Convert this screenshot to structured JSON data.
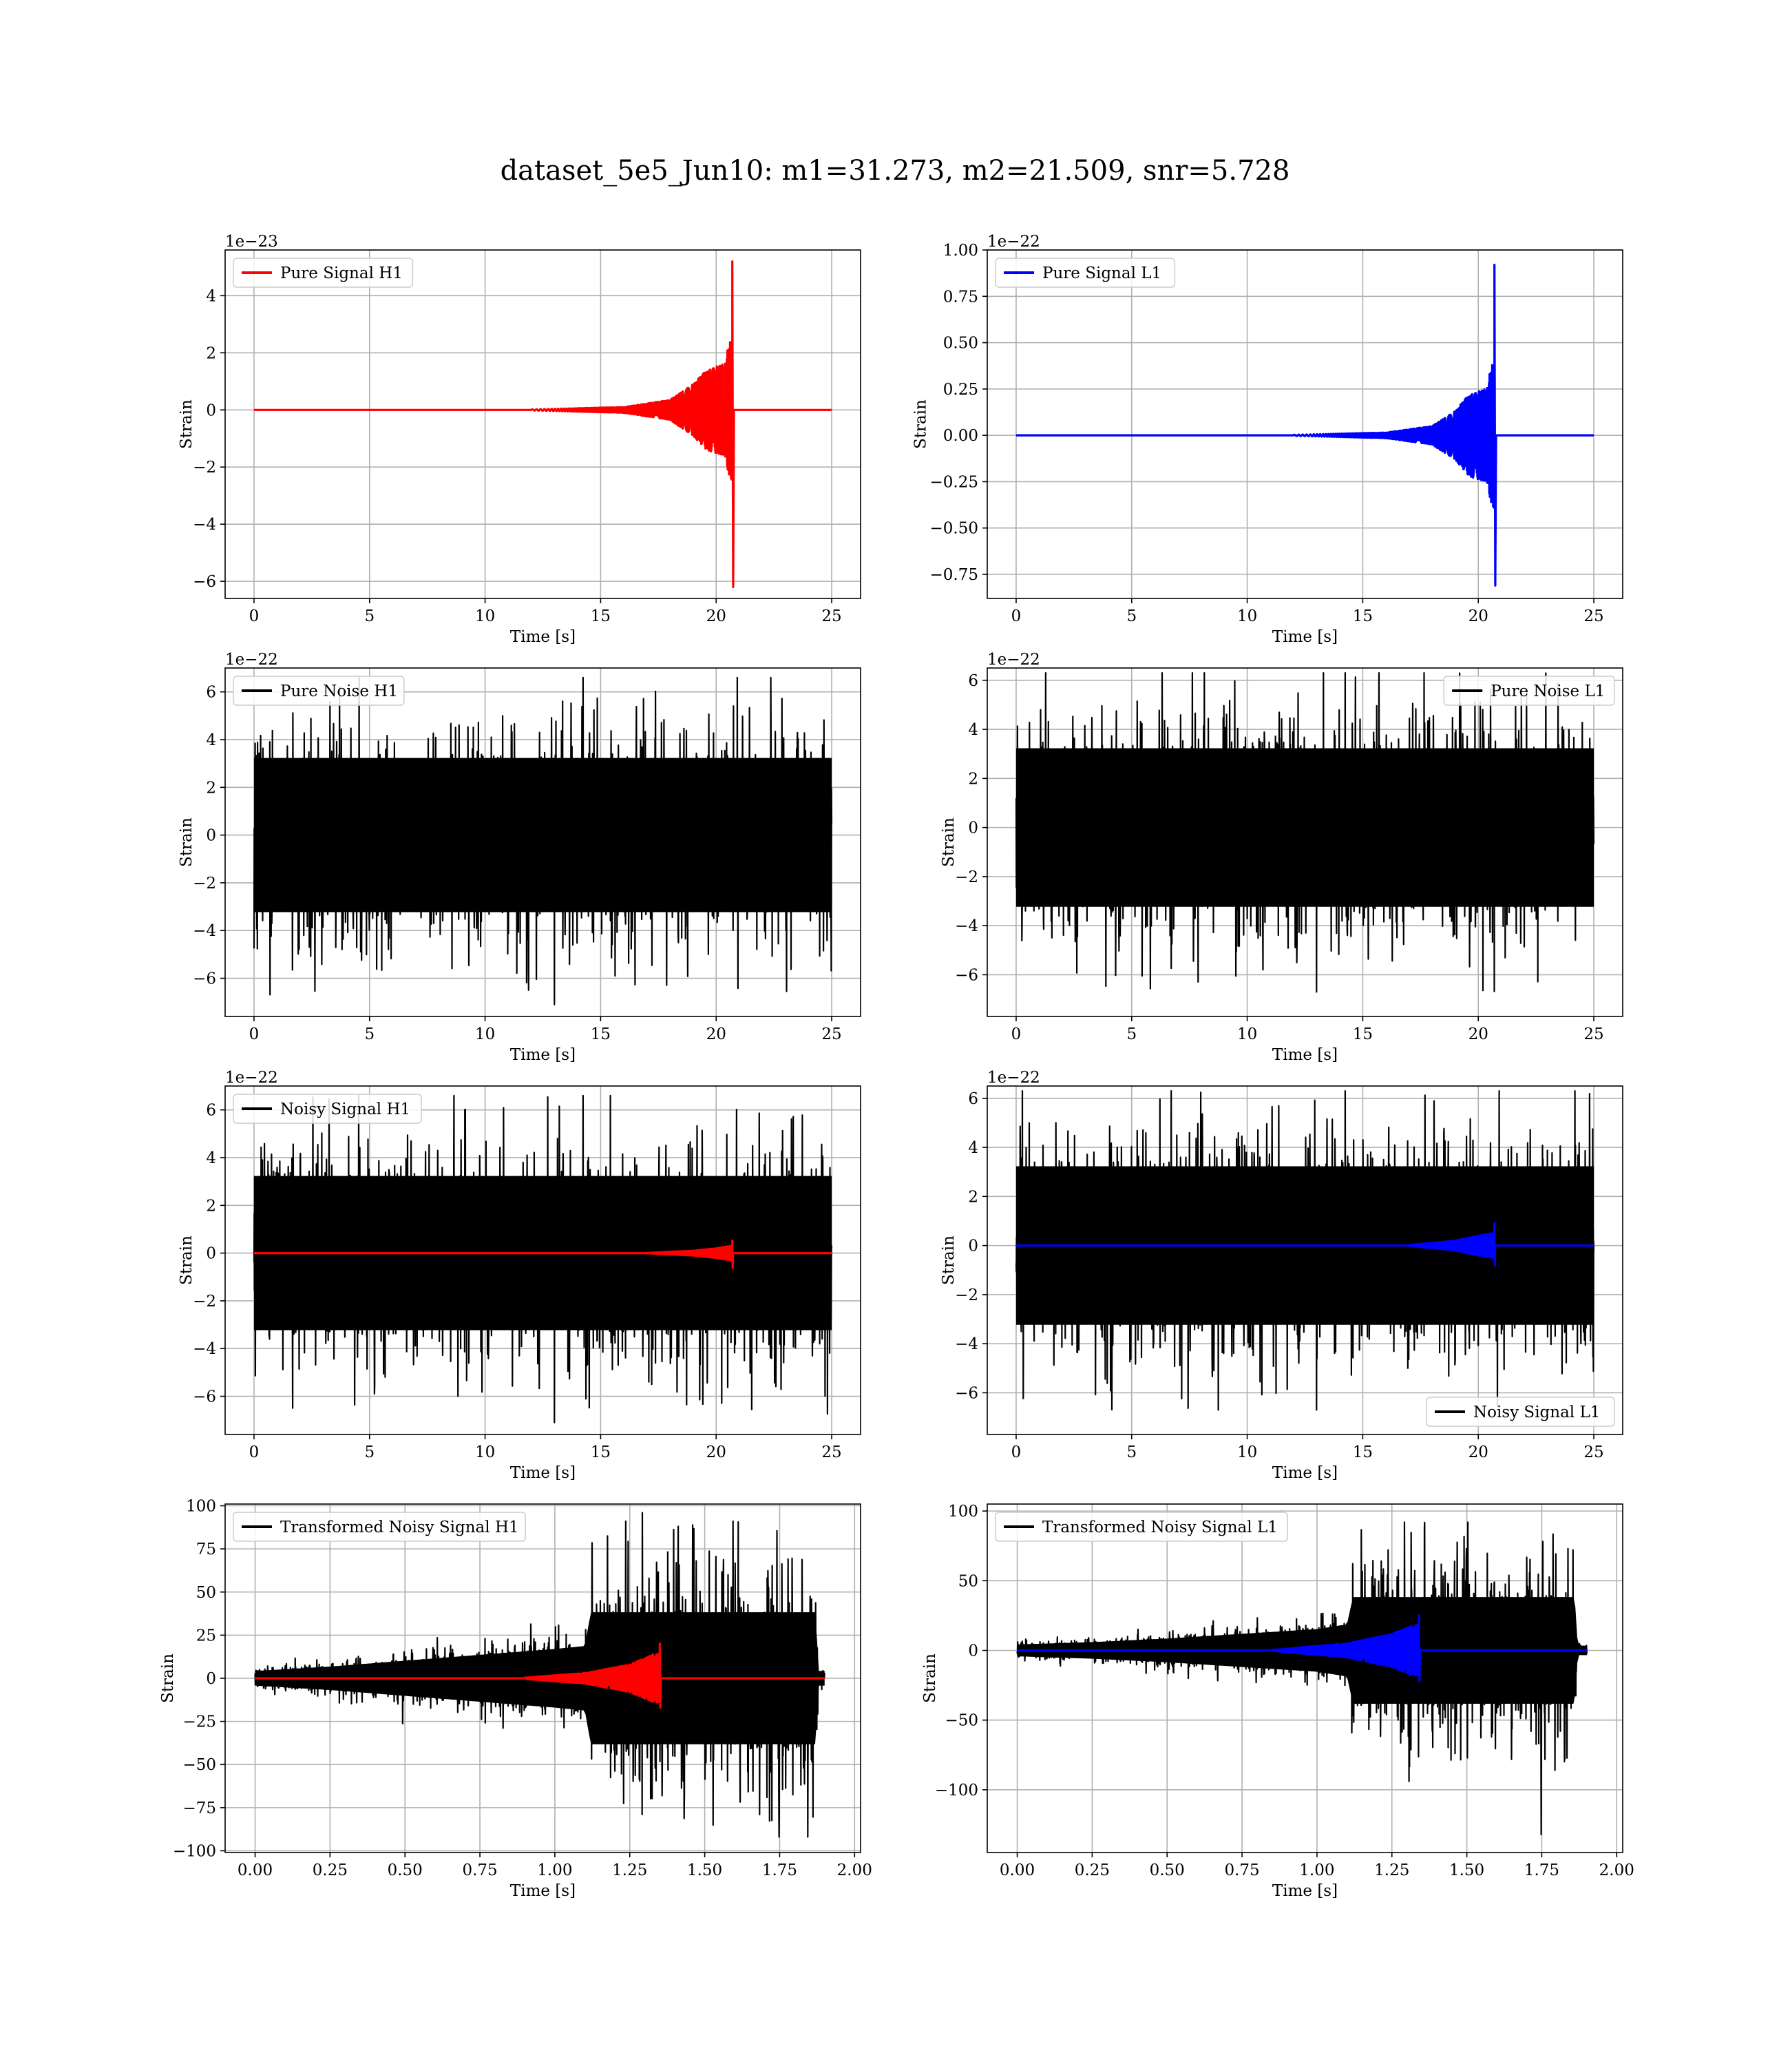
{
  "title": "dataset_5e5_Jun10: m1=31.273, m2=21.509, snr=5.728",
  "colors": {
    "signal_h1": "#ff0000",
    "signal_l1": "#0000ff",
    "noise": "#000000",
    "grid": "#b0b0b0"
  },
  "chart_data": [
    {
      "id": "pure-signal-h1",
      "type": "line",
      "xlabel": "Time [s]",
      "ylabel": "Strain",
      "offset_label": "1e−23",
      "xlim": [
        -1.25,
        26.25
      ],
      "ylim": [
        -6.6,
        5.6
      ],
      "xticks": [
        0,
        5,
        10,
        15,
        20,
        25
      ],
      "xtick_labels": [
        "0",
        "5",
        "10",
        "15",
        "20",
        "25"
      ],
      "yticks": [
        -6,
        -4,
        -2,
        0,
        2,
        4
      ],
      "ytick_labels": [
        "−6",
        "−4",
        "−2",
        "0",
        "2",
        "4"
      ],
      "legend_position": "upper left",
      "series": [
        {
          "name": "Pure Signal H1",
          "color": "#ff0000",
          "kind": "chirp",
          "x_range": [
            0,
            25
          ],
          "chirp_start": 12,
          "chirp_end": 20.7,
          "envelope": [
            [
              12,
              0.02
            ],
            [
              16,
              0.1
            ],
            [
              18,
              0.35
            ],
            [
              19,
              0.9
            ],
            [
              19.6,
              1.4
            ],
            [
              20.3,
              1.6
            ],
            [
              20.65,
              2.5
            ]
          ],
          "spike_max": 5.2,
          "spike_min": -6.2,
          "merger_time": 20.7
        }
      ]
    },
    {
      "id": "pure-signal-l1",
      "type": "line",
      "xlabel": "Time [s]",
      "ylabel": "Strain",
      "offset_label": "1e−22",
      "xlim": [
        -1.25,
        26.25
      ],
      "ylim": [
        -0.88,
        1.0
      ],
      "xticks": [
        0,
        5,
        10,
        15,
        20,
        25
      ],
      "xtick_labels": [
        "0",
        "5",
        "10",
        "15",
        "20",
        "25"
      ],
      "yticks": [
        -0.75,
        -0.5,
        -0.25,
        0,
        0.25,
        0.5,
        0.75,
        1.0
      ],
      "ytick_labels": [
        "−0.75",
        "−0.50",
        "−0.25",
        "0.00",
        "0.25",
        "0.50",
        "0.75",
        "1.00"
      ],
      "legend_position": "upper left",
      "series": [
        {
          "name": "Pure Signal L1",
          "color": "#0000ff",
          "kind": "chirp",
          "x_range": [
            0,
            25
          ],
          "chirp_start": 12,
          "chirp_end": 20.7,
          "envelope": [
            [
              12,
              0.003
            ],
            [
              16,
              0.015
            ],
            [
              18,
              0.05
            ],
            [
              19,
              0.13
            ],
            [
              19.6,
              0.22
            ],
            [
              20.3,
              0.25
            ],
            [
              20.65,
              0.4
            ]
          ],
          "spike_max": 0.92,
          "spike_min": -0.81,
          "merger_time": 20.7
        }
      ]
    },
    {
      "id": "pure-noise-h1",
      "type": "line",
      "xlabel": "Time [s]",
      "ylabel": "Strain",
      "offset_label": "1e−22",
      "xlim": [
        -1.25,
        26.25
      ],
      "ylim": [
        -7.6,
        7.0
      ],
      "xticks": [
        0,
        5,
        10,
        15,
        20,
        25
      ],
      "xtick_labels": [
        "0",
        "5",
        "10",
        "15",
        "20",
        "25"
      ],
      "yticks": [
        -6,
        -4,
        -2,
        0,
        2,
        4,
        6
      ],
      "ytick_labels": [
        "−6",
        "−4",
        "−2",
        "0",
        "2",
        "4",
        "6"
      ],
      "legend_position": "upper left",
      "series": [
        {
          "name": "Pure Noise H1",
          "color": "#000000",
          "kind": "noise",
          "x_range": [
            0,
            25
          ],
          "band": 3.4,
          "peak_max": 6.6,
          "peak_min": -7.1
        }
      ]
    },
    {
      "id": "pure-noise-l1",
      "type": "line",
      "xlabel": "Time [s]",
      "ylabel": "Strain",
      "offset_label": "1e−22",
      "xlim": [
        -1.25,
        26.25
      ],
      "ylim": [
        -7.7,
        6.5
      ],
      "xticks": [
        0,
        5,
        10,
        15,
        20,
        25
      ],
      "xtick_labels": [
        "0",
        "5",
        "10",
        "15",
        "20",
        "25"
      ],
      "yticks": [
        -6,
        -4,
        -2,
        0,
        2,
        4,
        6
      ],
      "ytick_labels": [
        "−6",
        "−4",
        "−2",
        "0",
        "2",
        "4",
        "6"
      ],
      "legend_position": "upper right",
      "series": [
        {
          "name": "Pure Noise L1",
          "color": "#000000",
          "kind": "noise",
          "x_range": [
            0,
            25
          ],
          "band": 3.4,
          "peak_max": 6.3,
          "peak_min": -6.7
        }
      ]
    },
    {
      "id": "noisy-signal-h1",
      "type": "line",
      "xlabel": "Time [s]",
      "ylabel": "Strain",
      "offset_label": "1e−22",
      "xlim": [
        -1.25,
        26.25
      ],
      "ylim": [
        -7.6,
        7.0
      ],
      "xticks": [
        0,
        5,
        10,
        15,
        20,
        25
      ],
      "xtick_labels": [
        "0",
        "5",
        "10",
        "15",
        "20",
        "25"
      ],
      "yticks": [
        -6,
        -4,
        -2,
        0,
        2,
        4,
        6
      ],
      "ytick_labels": [
        "−6",
        "−4",
        "−2",
        "0",
        "2",
        "4",
        "6"
      ],
      "legend_position": "upper left",
      "series": [
        {
          "name": "Noisy Signal H1",
          "color": "#000000",
          "kind": "noise",
          "x_range": [
            0,
            25
          ],
          "band": 3.4,
          "peak_max": 6.6,
          "peak_min": -7.1
        },
        {
          "name": "",
          "color": "#ff0000",
          "kind": "chirp",
          "x_range": [
            0,
            25
          ],
          "chirp_start": 17,
          "chirp_end": 20.7,
          "envelope": [
            [
              17,
              0.01
            ],
            [
              19,
              0.1
            ],
            [
              20,
              0.2
            ],
            [
              20.6,
              0.3
            ]
          ],
          "spike_max": 0.52,
          "spike_min": -0.62,
          "merger_time": 20.7
        }
      ]
    },
    {
      "id": "noisy-signal-l1",
      "type": "line",
      "xlabel": "Time [s]",
      "ylabel": "Strain",
      "offset_label": "1e−22",
      "xlim": [
        -1.25,
        26.25
      ],
      "ylim": [
        -7.7,
        6.5
      ],
      "xticks": [
        0,
        5,
        10,
        15,
        20,
        25
      ],
      "xtick_labels": [
        "0",
        "5",
        "10",
        "15",
        "20",
        "25"
      ],
      "yticks": [
        -6,
        -4,
        -2,
        0,
        2,
        4,
        6
      ],
      "ytick_labels": [
        "−6",
        "−4",
        "−2",
        "0",
        "2",
        "4",
        "6"
      ],
      "legend_position": "lower right",
      "series": [
        {
          "name": "Noisy Signal L1",
          "color": "#000000",
          "kind": "noise",
          "x_range": [
            0,
            25
          ],
          "band": 3.4,
          "peak_max": 6.3,
          "peak_min": -6.7
        },
        {
          "name": "",
          "color": "#0000ff",
          "kind": "chirp",
          "x_range": [
            0,
            25
          ],
          "chirp_start": 17,
          "chirp_end": 20.7,
          "envelope": [
            [
              17,
              0.02
            ],
            [
              19,
              0.2
            ],
            [
              20,
              0.4
            ],
            [
              20.6,
              0.5
            ]
          ],
          "spike_max": 0.92,
          "spike_min": -0.81,
          "merger_time": 20.7
        }
      ]
    },
    {
      "id": "transformed-h1",
      "type": "line",
      "xlabel": "Time [s]",
      "ylabel": "Strain",
      "offset_label": "",
      "xlim": [
        -0.1,
        2.02
      ],
      "ylim": [
        -101,
        101
      ],
      "xticks": [
        0,
        0.25,
        0.5,
        0.75,
        1.0,
        1.25,
        1.5,
        1.75,
        2.0
      ],
      "xtick_labels": [
        "0.00",
        "0.25",
        "0.50",
        "0.75",
        "1.00",
        "1.25",
        "1.50",
        "1.75",
        "2.00"
      ],
      "yticks": [
        -100,
        -75,
        -50,
        -25,
        0,
        25,
        50,
        75,
        100
      ],
      "ytick_labels": [
        "−100",
        "−75",
        "−50",
        "−25",
        "0",
        "25",
        "50",
        "75",
        "100"
      ],
      "legend_position": "upper left",
      "series": [
        {
          "name": "Transformed Noisy Signal H1",
          "color": "#000000",
          "kind": "transformed",
          "x_range": [
            0,
            1.9
          ],
          "envelope": [
            [
              0,
              5
            ],
            [
              0.25,
              8
            ],
            [
              0.5,
              12
            ],
            [
              0.75,
              16
            ],
            [
              1.0,
              20
            ],
            [
              1.1,
              22
            ],
            [
              1.12,
              45
            ],
            [
              1.87,
              45
            ],
            [
              1.88,
              5
            ],
            [
              1.9,
              5
            ]
          ],
          "peak_max": 96,
          "peak_min": -92
        },
        {
          "name": "",
          "color": "#ff0000",
          "kind": "chirp",
          "x_range": [
            0,
            1.9
          ],
          "chirp_start": 0.9,
          "chirp_end": 1.35,
          "envelope": [
            [
              0.9,
              0.5
            ],
            [
              1.1,
              3
            ],
            [
              1.25,
              8
            ],
            [
              1.33,
              14
            ]
          ],
          "spike_max": 20,
          "spike_min": -17,
          "merger_time": 1.35
        }
      ]
    },
    {
      "id": "transformed-l1",
      "type": "line",
      "xlabel": "Time [s]",
      "ylabel": "Strain",
      "offset_label": "",
      "xlim": [
        -0.1,
        2.02
      ],
      "ylim": [
        -145,
        105
      ],
      "xticks": [
        0,
        0.25,
        0.5,
        0.75,
        1.0,
        1.25,
        1.5,
        1.75,
        2.0
      ],
      "xtick_labels": [
        "0.00",
        "0.25",
        "0.50",
        "0.75",
        "1.00",
        "1.25",
        "1.50",
        "1.75",
        "2.00"
      ],
      "yticks": [
        -100,
        -50,
        0,
        50,
        100
      ],
      "ytick_labels": [
        "−100",
        "−50",
        "0",
        "50",
        "100"
      ],
      "legend_position": "upper left",
      "series": [
        {
          "name": "Transformed Noisy Signal L1",
          "color": "#000000",
          "kind": "transformed",
          "x_range": [
            0,
            1.9
          ],
          "envelope": [
            [
              0,
              5
            ],
            [
              0.25,
              7
            ],
            [
              0.5,
              10
            ],
            [
              0.75,
              14
            ],
            [
              1.0,
              18
            ],
            [
              1.1,
              22
            ],
            [
              1.12,
              45
            ],
            [
              1.86,
              45
            ],
            [
              1.87,
              4
            ],
            [
              1.9,
              4
            ]
          ],
          "peak_max": 92,
          "peak_min": -132
        },
        {
          "name": "",
          "color": "#0000ff",
          "kind": "chirp",
          "x_range": [
            0,
            1.9
          ],
          "chirp_start": 0.85,
          "chirp_end": 1.34,
          "envelope": [
            [
              0.85,
              0.5
            ],
            [
              1.1,
              5
            ],
            [
              1.25,
              12
            ],
            [
              1.32,
              18
            ]
          ],
          "spike_max": 25,
          "spike_min": -22,
          "merger_time": 1.34
        }
      ]
    }
  ]
}
